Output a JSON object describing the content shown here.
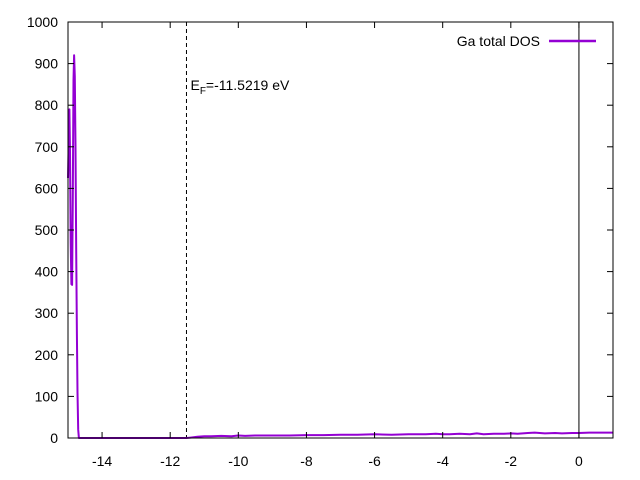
{
  "chart_data": {
    "type": "line",
    "title": "",
    "xlabel": "",
    "ylabel": "",
    "xlim": [
      -15,
      1
    ],
    "ylim": [
      0,
      1000
    ],
    "x_ticks": [
      -14,
      -12,
      -10,
      -8,
      -6,
      -4,
      -2,
      0
    ],
    "y_ticks": [
      0,
      100,
      200,
      300,
      400,
      500,
      600,
      700,
      800,
      900,
      1000
    ],
    "x_tick_labels": [
      "-14",
      "-12",
      "-10",
      "-8",
      "-6",
      "-4",
      "-2",
      "0"
    ],
    "y_tick_labels": [
      "0",
      "100",
      "200",
      "300",
      "400",
      "500",
      "600",
      "700",
      "800",
      "900",
      "1000"
    ],
    "grid": false,
    "legend_position": "top-right",
    "series": [
      {
        "name": "Ga total DOS",
        "color": "#9400d3",
        "x": [
          -15.0,
          -14.96,
          -14.94,
          -14.92,
          -14.9,
          -14.88,
          -14.86,
          -14.84,
          -14.82,
          -14.8,
          -14.78,
          -14.76,
          -14.74,
          -14.72,
          -14.7,
          -14.68,
          -14.6,
          -14.5,
          -14.0,
          -13.0,
          -12.0,
          -11.52,
          -11.4,
          -11.2,
          -11.0,
          -10.8,
          -10.5,
          -10.2,
          -10.0,
          -9.8,
          -9.5,
          -9.0,
          -8.5,
          -8.0,
          -7.5,
          -7.0,
          -6.5,
          -6.0,
          -5.5,
          -5.0,
          -4.5,
          -4.2,
          -4.0,
          -3.8,
          -3.5,
          -3.2,
          -3.0,
          -2.8,
          -2.5,
          -2.2,
          -2.0,
          -1.8,
          -1.5,
          -1.3,
          -1.0,
          -0.7,
          -0.5,
          -0.2,
          0.0,
          0.3,
          0.6,
          1.0
        ],
        "y": [
          625,
          790,
          690,
          470,
          370,
          368,
          580,
          860,
          920,
          870,
          700,
          450,
          250,
          110,
          20,
          0,
          0,
          0,
          0,
          0,
          0,
          0,
          1,
          3,
          4,
          4,
          5,
          4,
          6,
          5,
          6,
          6,
          6,
          7,
          7,
          8,
          8,
          9,
          8,
          9,
          9,
          10,
          9,
          9,
          10,
          9,
          11,
          9,
          10,
          10,
          11,
          10,
          12,
          13,
          11,
          12,
          11,
          12,
          12,
          13,
          13,
          13
        ]
      }
    ],
    "annotations": [
      {
        "type": "vline",
        "x": -11.5219,
        "style": "dashed",
        "color": "#000000"
      },
      {
        "type": "vline",
        "x": 0,
        "style": "solid",
        "color": "#000000"
      }
    ],
    "fermi_label": {
      "main": "E",
      "sub": "F",
      "rest": "=-11.5219 eV"
    }
  }
}
